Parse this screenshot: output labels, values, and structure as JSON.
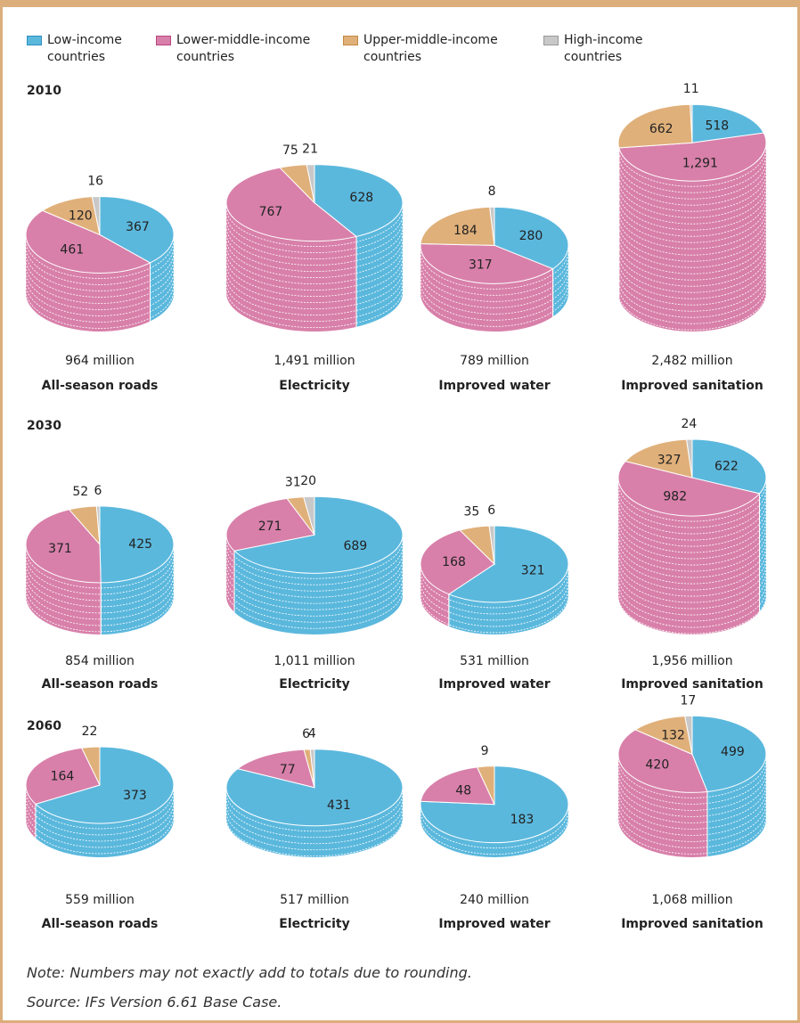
{
  "legend": {
    "names": [
      "Low-income countries",
      "Lower-middle-income countries",
      "Upper-middle-income countries",
      "High-income countries"
    ],
    "colors": [
      "#5bb8dd",
      "#d880aa",
      "#e0b07a",
      "#c8c8c8"
    ]
  },
  "row_titles": [
    "2010",
    "2030",
    "2060"
  ],
  "chart_data": [
    {
      "type": "pie",
      "title": "All-season roads",
      "subtitle": "964 million",
      "values": [
        367,
        461,
        120,
        16
      ]
    },
    {
      "type": "pie",
      "title": "Electricity",
      "subtitle": "1,491 million",
      "values": [
        628,
        767,
        75,
        21
      ]
    },
    {
      "type": "pie",
      "title": "Improved water",
      "subtitle": "789 million",
      "values": [
        280,
        317,
        184,
        8
      ]
    },
    {
      "type": "pie",
      "title": "Improved sanitation",
      "subtitle": "2,482 million",
      "values": [
        518,
        1291,
        662,
        11
      ],
      "value_labels": [
        "518",
        "1,291",
        "662",
        "11"
      ]
    },
    {
      "type": "pie",
      "title": "All-season roads",
      "subtitle": "854 million",
      "values": [
        425,
        371,
        52,
        6
      ]
    },
    {
      "type": "pie",
      "title": "Electricity",
      "subtitle": "1,011 million",
      "values": [
        689,
        271,
        31,
        20
      ]
    },
    {
      "type": "pie",
      "title": "Improved water",
      "subtitle": "531 million",
      "values": [
        321,
        168,
        35,
        6
      ]
    },
    {
      "type": "pie",
      "title": "Improved sanitation",
      "subtitle": "1,956 million",
      "values": [
        622,
        982,
        327,
        24
      ]
    },
    {
      "type": "pie",
      "title": "All-season roads",
      "subtitle": "559 million",
      "values": [
        373,
        164,
        22,
        0
      ]
    },
    {
      "type": "pie",
      "title": "Electricity",
      "subtitle": "517 million",
      "values": [
        431,
        77,
        6,
        4
      ]
    },
    {
      "type": "pie",
      "title": "Improved water",
      "subtitle": "240 million",
      "values": [
        183,
        48,
        9,
        0
      ]
    },
    {
      "type": "pie",
      "title": "Improved sanitation",
      "subtitle": "1,068 million",
      "values": [
        499,
        420,
        132,
        17
      ]
    }
  ],
  "note": "Note: Numbers may not exactly add to totals due to rounding.",
  "source": "Source: IFs Version 6.61 Base Case."
}
